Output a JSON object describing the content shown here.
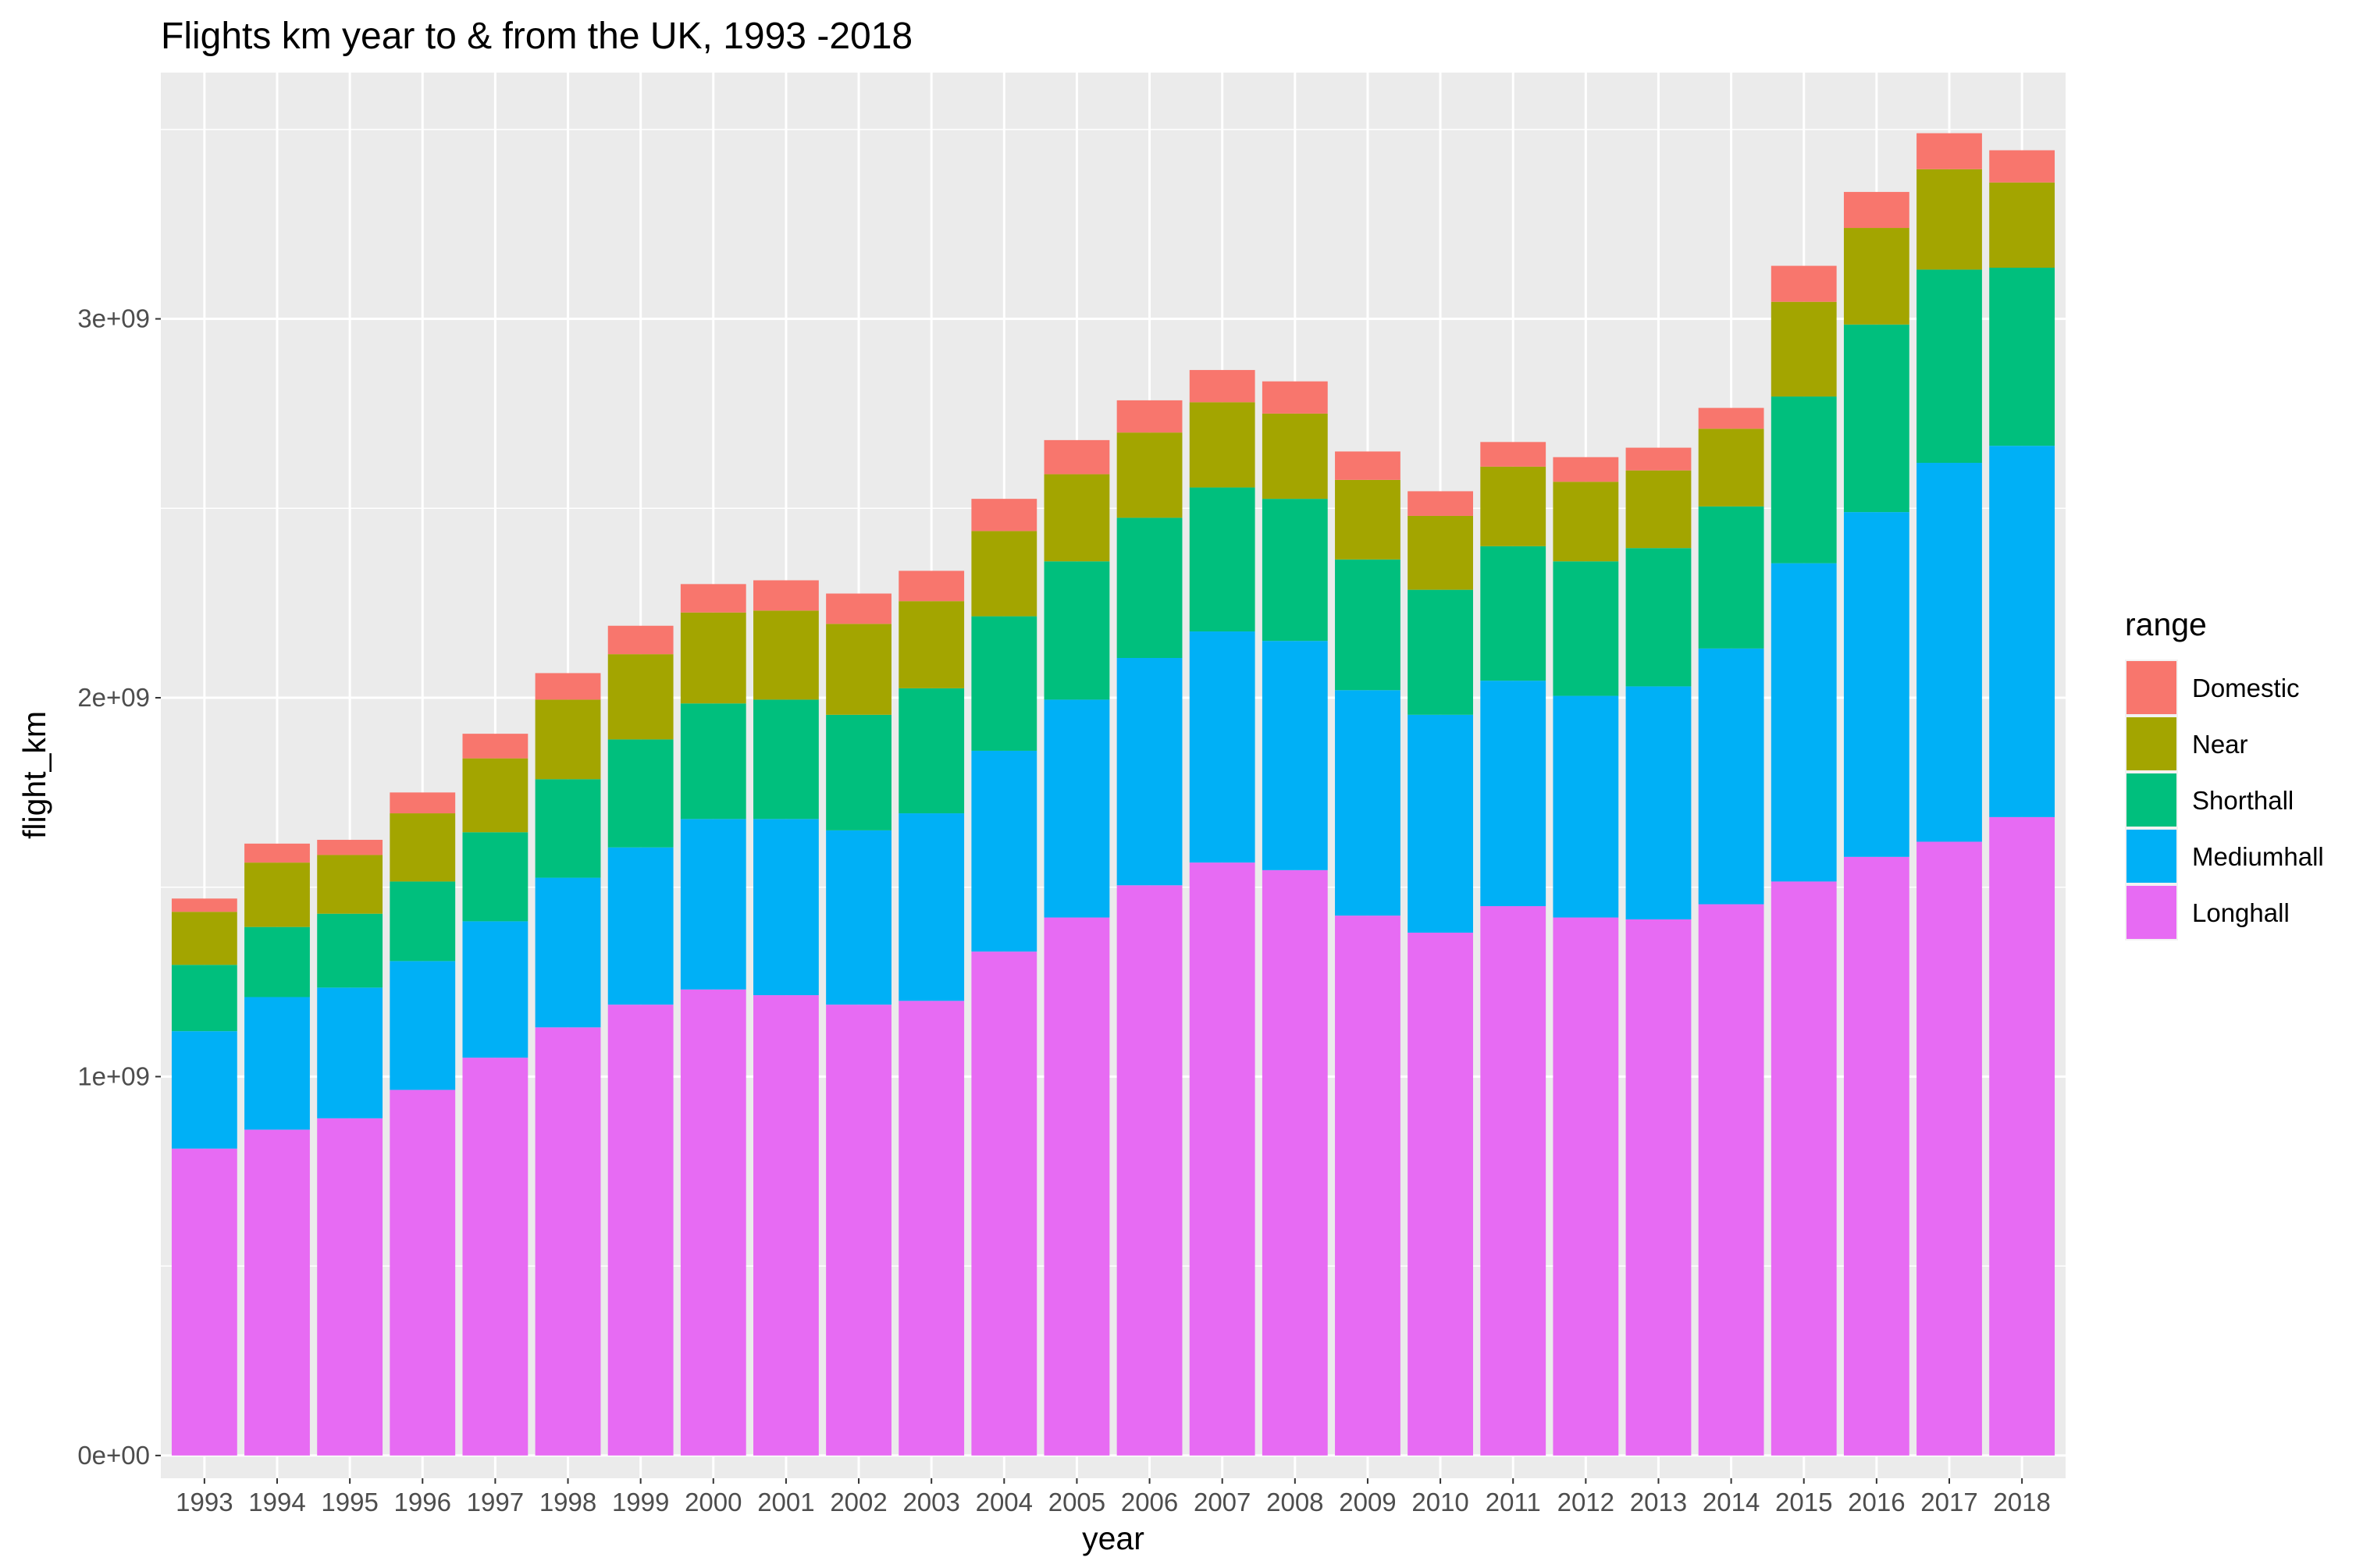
{
  "chart_data": {
    "type": "bar",
    "stacked": true,
    "title": "Flights km year to & from the UK, 1993 -2018",
    "xlabel": "year",
    "ylabel": "flight_km",
    "ylim": [
      -60000000,
      3650000000
    ],
    "y_ticks": [
      0,
      1000000000,
      2000000000,
      3000000000
    ],
    "y_tick_labels": [
      "0e+00",
      "1e+09",
      "2e+09",
      "3e+09"
    ],
    "grid": true,
    "legend": {
      "title": "range",
      "position": "right"
    },
    "categories": [
      "1993",
      "1994",
      "1995",
      "1996",
      "1997",
      "1998",
      "1999",
      "2000",
      "2001",
      "2002",
      "2003",
      "2004",
      "2005",
      "2006",
      "2007",
      "2008",
      "2009",
      "2010",
      "2011",
      "2012",
      "2013",
      "2014",
      "2015",
      "2016",
      "2017",
      "2018"
    ],
    "series": [
      {
        "name": "Longhall",
        "color": "#E76BF3",
        "values": [
          810000000,
          860000000,
          890000000,
          965000000,
          1050000000,
          1130000000,
          1190000000,
          1230000000,
          1215000000,
          1190000000,
          1200000000,
          1330000000,
          1420000000,
          1505000000,
          1565000000,
          1545000000,
          1425000000,
          1380000000,
          1450000000,
          1420000000,
          1415000000,
          1455000000,
          1515000000,
          1580000000,
          1620000000,
          1685000000
        ]
      },
      {
        "name": "Mediumhall",
        "color": "#00B0F6",
        "values": [
          310000000,
          350000000,
          345000000,
          340000000,
          360000000,
          395000000,
          415000000,
          450000000,
          465000000,
          460000000,
          495000000,
          530000000,
          575000000,
          600000000,
          610000000,
          605000000,
          595000000,
          575000000,
          595000000,
          585000000,
          615000000,
          675000000,
          840000000,
          910000000,
          1000000000,
          980000000
        ]
      },
      {
        "name": "Shorthall",
        "color": "#00BF7D",
        "values": [
          175000000,
          185000000,
          195000000,
          210000000,
          235000000,
          260000000,
          285000000,
          305000000,
          315000000,
          305000000,
          330000000,
          355000000,
          365000000,
          370000000,
          380000000,
          375000000,
          345000000,
          330000000,
          355000000,
          355000000,
          365000000,
          375000000,
          440000000,
          495000000,
          510000000,
          470000000
        ]
      },
      {
        "name": "Near",
        "color": "#A3A500",
        "values": [
          140000000,
          170000000,
          155000000,
          180000000,
          195000000,
          210000000,
          225000000,
          240000000,
          235000000,
          240000000,
          230000000,
          225000000,
          230000000,
          225000000,
          225000000,
          225000000,
          210000000,
          195000000,
          210000000,
          210000000,
          205000000,
          205000000,
          250000000,
          255000000,
          265000000,
          225000000
        ]
      },
      {
        "name": "Domestic",
        "color": "#F8766D",
        "values": [
          35000000,
          50000000,
          40000000,
          55000000,
          65000000,
          70000000,
          75000000,
          75000000,
          80000000,
          80000000,
          80000000,
          85000000,
          90000000,
          85000000,
          85000000,
          85000000,
          75000000,
          65000000,
          65000000,
          65000000,
          60000000,
          55000000,
          95000000,
          95000000,
          95000000,
          85000000
        ]
      }
    ]
  }
}
